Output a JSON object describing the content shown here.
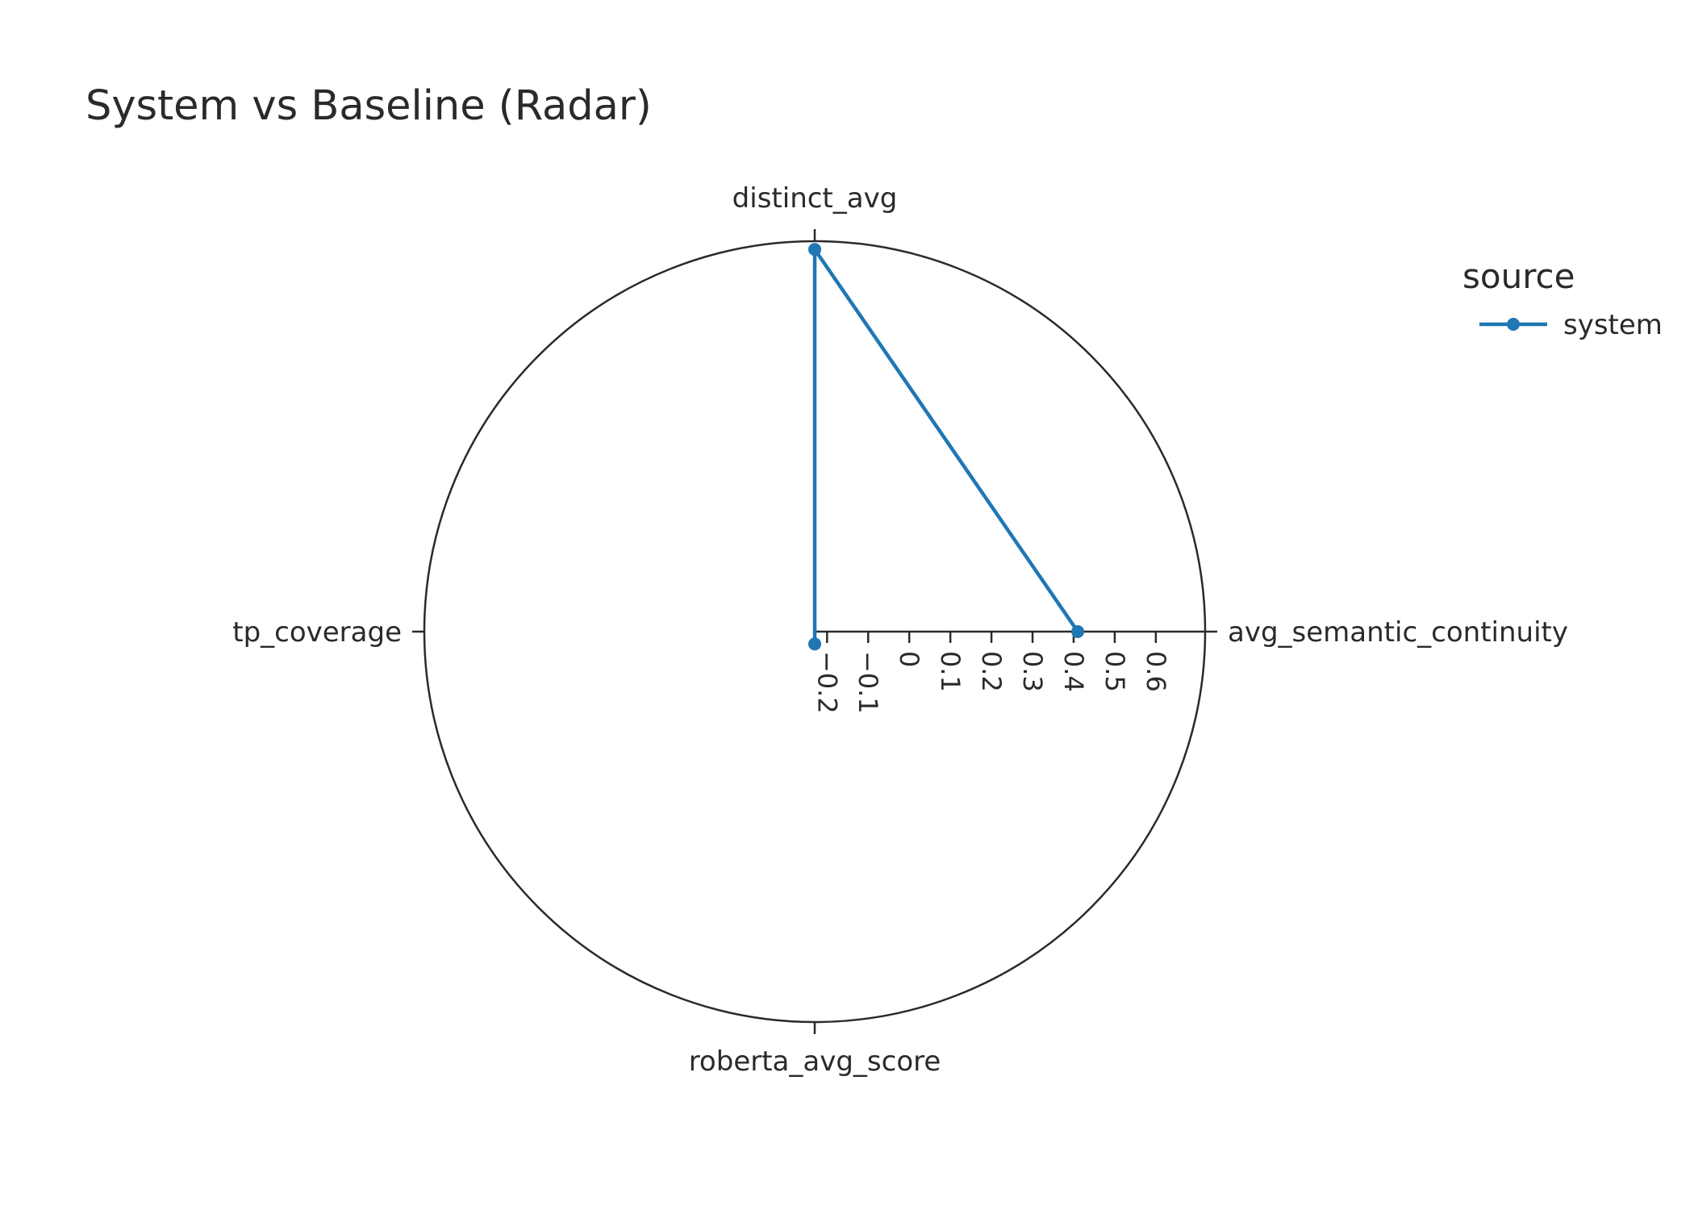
{
  "chart_data": {
    "type": "radar",
    "title": "System vs Baseline (Radar)",
    "axes": [
      "avg_semantic_continuity",
      "distinct_avg",
      "tp_coverage",
      "roberta_avg_score"
    ],
    "radial_range": [
      -0.23,
      0.72
    ],
    "radial_ticks": [
      -0.2,
      -0.1,
      0,
      0.1,
      0.2,
      0.3,
      0.4,
      0.5,
      0.6
    ],
    "radial_tick_labels": [
      "−0.2",
      "−0.1",
      "0",
      "0.1",
      "0.2",
      "0.3",
      "0.4",
      "0.5",
      "0.6"
    ],
    "grid": false,
    "legend": {
      "title": "source",
      "placement": "top-right"
    },
    "series": [
      {
        "name": "system",
        "color": "#1f77b4",
        "marker": "circle",
        "points": [
          {
            "axis": "avg_semantic_continuity",
            "value": 0.41
          },
          {
            "axis": "distinct_avg",
            "value": 0.7
          },
          {
            "axis": "roberta_avg_score",
            "value": -0.2
          }
        ]
      }
    ]
  }
}
